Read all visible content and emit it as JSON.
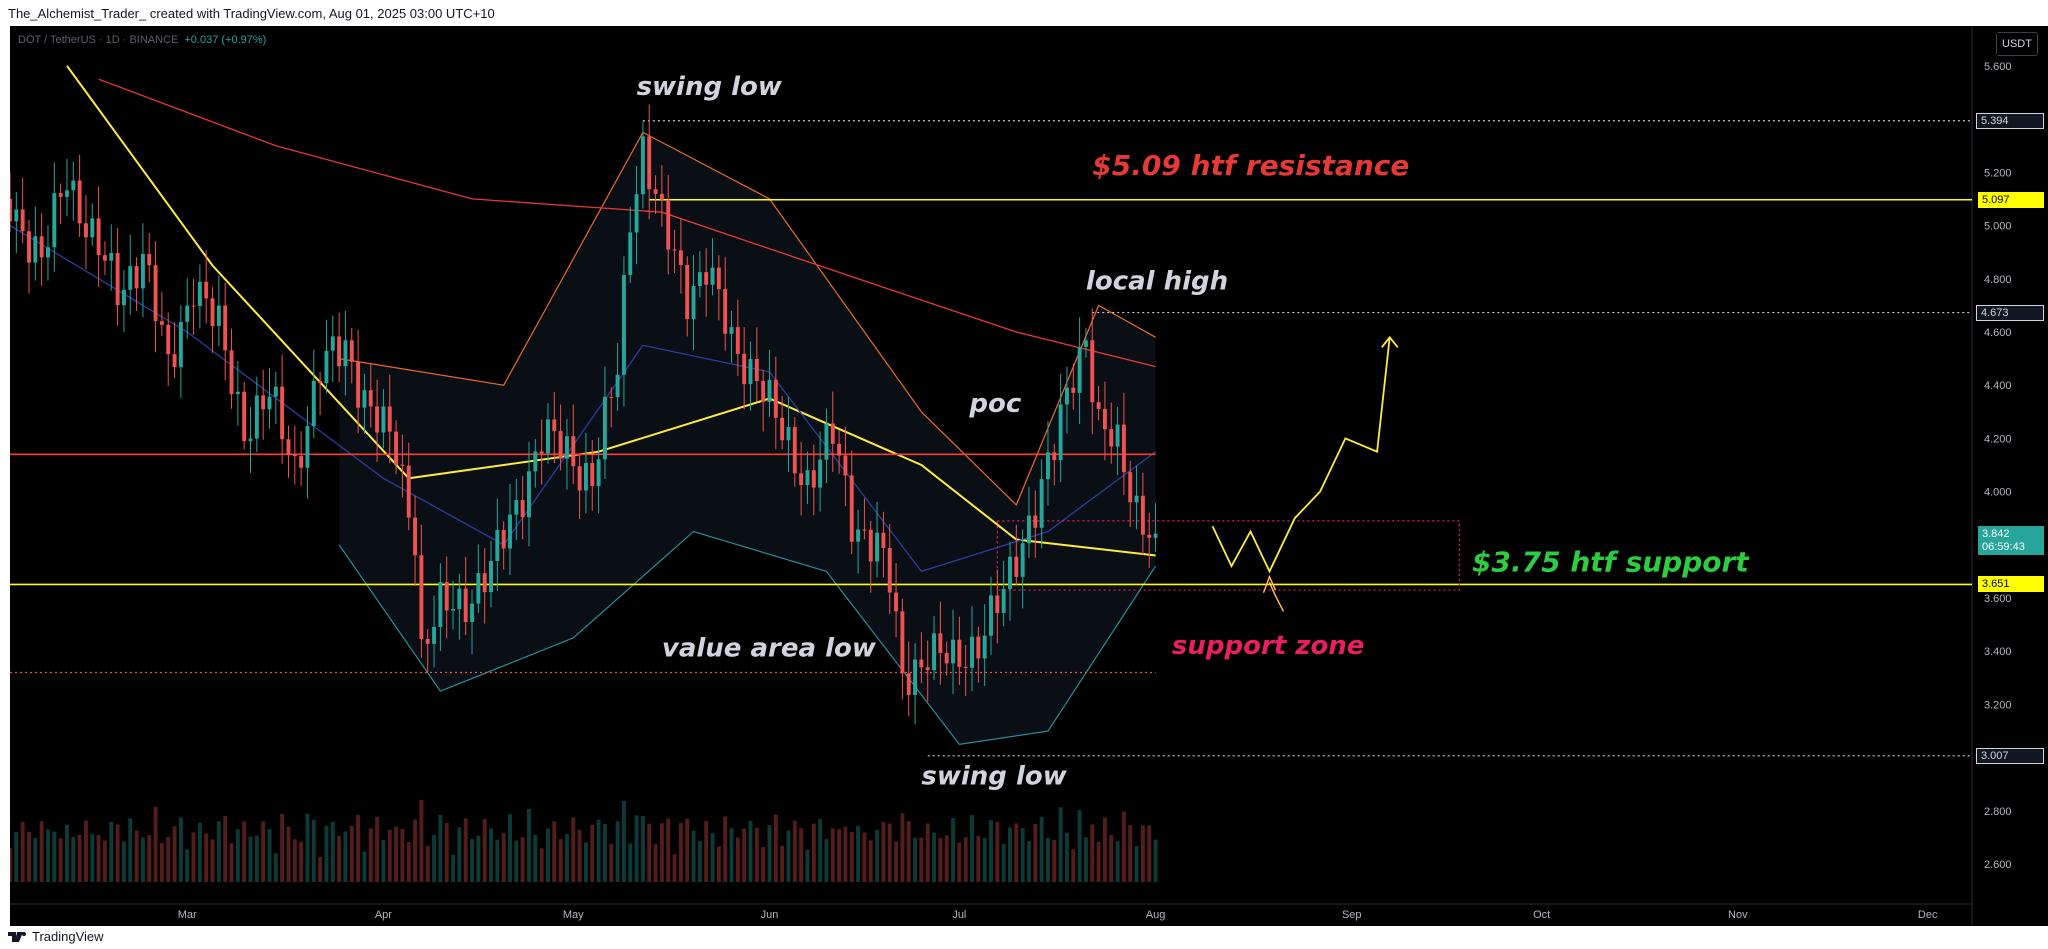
{
  "header": {
    "title": "The_Alchemist_Trader_ created with TradingView.com, Aug 01, 2025 03:00 UTC+10"
  },
  "legend": {
    "symbol": "DOT / TetherUS · 1D · BINANCE",
    "change": "+0.037 (+0.97%)"
  },
  "currency_button": "USDT",
  "footer": {
    "brand": "TradingView"
  },
  "colors": {
    "up": "#26a69a",
    "down": "#ef5350",
    "support": "#ffff00",
    "resistance": "#ff3b30",
    "annotation_text": "#d1d4dc",
    "support_label": "#2ecc40",
    "resistance_label": "#e53935",
    "zone_label": "#e91e63"
  },
  "price_tags": [
    {
      "value": "5.394",
      "price": 5.394,
      "style": "dotted"
    },
    {
      "value": "5.097",
      "price": 5.097,
      "style": "yellow"
    },
    {
      "value": "4.673",
      "price": 4.673,
      "style": "dotted"
    },
    {
      "value": "3.842",
      "price": 3.842,
      "style": "last"
    },
    {
      "value": "06:59:43",
      "price": 3.79,
      "style": "countdown"
    },
    {
      "value": "3.651",
      "price": 3.651,
      "style": "yellow"
    },
    {
      "value": "3.007",
      "price": 3.007,
      "style": "dotted"
    }
  ],
  "annotations": {
    "swing_low_top": "swing low",
    "resistance": "$5.09 htf resistance",
    "local_high": "local high",
    "poc": "poc",
    "support": "$3.75 htf support",
    "support_zone": "support zone",
    "value_area_low": "value area low",
    "swing_low_bottom": "swing low"
  },
  "chart_data": {
    "type": "candlestick",
    "symbol": "DOT / TetherUS",
    "timeframe": "1D",
    "exchange": "BINANCE",
    "y_ticks": [
      2.6,
      2.8,
      3.0,
      3.2,
      3.4,
      3.6,
      3.8,
      4.0,
      4.2,
      4.4,
      4.6,
      4.8,
      5.0,
      5.2,
      5.4,
      5.6
    ],
    "y_tick_labels": [
      "2.600",
      "2.800",
      "3.000",
      "3.200",
      "3.400",
      "3.600",
      "3.800",
      "4.000",
      "4.200",
      "4.400",
      "4.600",
      "4.800",
      "5.000",
      "5.200",
      "5.400",
      "5.600"
    ],
    "ylim": [
      2.45,
      5.75
    ],
    "x_labels": [
      "Mar",
      "Apr",
      "May",
      "Jun",
      "Jul",
      "Aug",
      "Sep",
      "Oct",
      "Nov",
      "Dec"
    ],
    "x_label_dates": [
      "2025-03-01",
      "2025-04-01",
      "2025-05-01",
      "2025-06-01",
      "2025-07-01",
      "2025-08-01",
      "2025-09-01",
      "2025-10-01",
      "2025-11-01",
      "2025-12-01"
    ],
    "xlim": [
      "2025-02-01",
      "2025-12-08"
    ],
    "last_bar_date": "2025-08-01",
    "close_path": [
      [
        "2025-02-01",
        5.1
      ],
      [
        "2025-02-06",
        4.85
      ],
      [
        "2025-02-10",
        5.2
      ],
      [
        "2025-02-14",
        4.95
      ],
      [
        "2025-02-18",
        4.75
      ],
      [
        "2025-02-22",
        4.9
      ],
      [
        "2025-02-26",
        4.45
      ],
      [
        "2025-03-02",
        4.8
      ],
      [
        "2025-03-06",
        4.6
      ],
      [
        "2025-03-10",
        4.25
      ],
      [
        "2025-03-14",
        4.35
      ],
      [
        "2025-03-18",
        4.1
      ],
      [
        "2025-03-22",
        4.45
      ],
      [
        "2025-03-26",
        4.55
      ],
      [
        "2025-03-30",
        4.3
      ],
      [
        "2025-04-03",
        4.15
      ],
      [
        "2025-04-06",
        3.85
      ],
      [
        "2025-04-07",
        3.4
      ],
      [
        "2025-04-10",
        3.55
      ],
      [
        "2025-04-14",
        3.6
      ],
      [
        "2025-04-18",
        3.7
      ],
      [
        "2025-04-22",
        3.95
      ],
      [
        "2025-04-26",
        4.2
      ],
      [
        "2025-04-30",
        4.15
      ],
      [
        "2025-05-04",
        4.05
      ],
      [
        "2025-05-08",
        4.45
      ],
      [
        "2025-05-10",
        5.05
      ],
      [
        "2025-05-12",
        5.3
      ],
      [
        "2025-05-15",
        5.0
      ],
      [
        "2025-05-19",
        4.75
      ],
      [
        "2025-05-22",
        4.85
      ],
      [
        "2025-05-26",
        4.55
      ],
      [
        "2025-05-30",
        4.45
      ],
      [
        "2025-06-03",
        4.2
      ],
      [
        "2025-06-07",
        4.05
      ],
      [
        "2025-06-11",
        4.2
      ],
      [
        "2025-06-14",
        3.9
      ],
      [
        "2025-06-18",
        3.8
      ],
      [
        "2025-06-20",
        3.65
      ],
      [
        "2025-06-22",
        3.3
      ],
      [
        "2025-06-26",
        3.4
      ],
      [
        "2025-06-30",
        3.35
      ],
      [
        "2025-07-04",
        3.45
      ],
      [
        "2025-07-08",
        3.6
      ],
      [
        "2025-07-12",
        3.9
      ],
      [
        "2025-07-16",
        4.15
      ],
      [
        "2025-07-19",
        4.45
      ],
      [
        "2025-07-21",
        4.6
      ],
      [
        "2025-07-23",
        4.25
      ],
      [
        "2025-07-26",
        4.15
      ],
      [
        "2025-07-29",
        3.95
      ],
      [
        "2025-08-01",
        3.842
      ]
    ],
    "moving_averages": [
      {
        "color": "#ffeb3b",
        "points": [
          [
            "2025-02-10",
            5.6
          ],
          [
            "2025-03-05",
            4.85
          ],
          [
            "2025-04-05",
            4.05
          ],
          [
            "2025-05-05",
            4.15
          ],
          [
            "2025-06-01",
            4.35
          ],
          [
            "2025-06-25",
            4.1
          ],
          [
            "2025-07-10",
            3.82
          ],
          [
            "2025-08-01",
            3.76
          ]
        ]
      },
      {
        "color": "#e53935",
        "points": [
          [
            "2025-02-15",
            5.55
          ],
          [
            "2025-03-15",
            5.3
          ],
          [
            "2025-04-15",
            5.1
          ],
          [
            "2025-05-15",
            5.05
          ],
          [
            "2025-06-15",
            4.8
          ],
          [
            "2025-07-10",
            4.6
          ],
          [
            "2025-08-01",
            4.47
          ]
        ]
      },
      {
        "color": "#2c3e9e",
        "points": [
          [
            "2025-02-01",
            5.0
          ],
          [
            "2025-03-01",
            4.6
          ],
          [
            "2025-04-01",
            4.05
          ],
          [
            "2025-04-20",
            3.8
          ],
          [
            "2025-05-12",
            4.55
          ],
          [
            "2025-06-01",
            4.45
          ],
          [
            "2025-06-25",
            3.7
          ],
          [
            "2025-07-15",
            3.85
          ],
          [
            "2025-08-01",
            4.15
          ]
        ]
      }
    ],
    "bollinger": {
      "upper": [
        [
          "2025-03-25",
          4.5
        ],
        [
          "2025-04-20",
          4.4
        ],
        [
          "2025-05-12",
          5.35
        ],
        [
          "2025-06-01",
          5.1
        ],
        [
          "2025-06-25",
          4.3
        ],
        [
          "2025-07-10",
          3.95
        ],
        [
          "2025-07-23",
          4.7
        ],
        [
          "2025-08-01",
          4.58
        ]
      ],
      "lower": [
        [
          "2025-03-25",
          3.8
        ],
        [
          "2025-04-10",
          3.25
        ],
        [
          "2025-05-01",
          3.45
        ],
        [
          "2025-05-20",
          3.85
        ],
        [
          "2025-06-10",
          3.7
        ],
        [
          "2025-07-01",
          3.05
        ],
        [
          "2025-07-15",
          3.1
        ],
        [
          "2025-08-01",
          3.72
        ]
      ]
    },
    "horizontal_lines": [
      {
        "price": 5.097,
        "color": "#ffff00",
        "style": "solid",
        "from": "2025-05-13"
      },
      {
        "price": 4.14,
        "color": "#ff3b30",
        "style": "solid",
        "from": "2025-02-01",
        "to": "2025-08-01"
      },
      {
        "price": 3.651,
        "color": "#ffff00",
        "style": "solid",
        "from": "2025-02-01"
      },
      {
        "price": 3.32,
        "color": "#ef5350",
        "style": "dotted",
        "from": "2025-02-01",
        "to": "2025-08-01"
      },
      {
        "price": 5.394,
        "color": "#cccccc",
        "style": "dotted",
        "from": "2025-05-12"
      },
      {
        "price": 4.673,
        "color": "#cccccc",
        "style": "dotted",
        "from": "2025-07-22"
      },
      {
        "price": 3.007,
        "color": "#cccccc",
        "style": "dotted",
        "from": "2025-06-26"
      }
    ],
    "support_zone": {
      "price_low": 3.63,
      "price_high": 3.89,
      "from": "2025-07-07",
      "to": "2025-09-18"
    },
    "projection": [
      [
        "2025-08-10",
        3.87
      ],
      [
        "2025-08-13",
        3.72
      ],
      [
        "2025-08-16",
        3.85
      ],
      [
        "2025-08-19",
        3.7
      ],
      [
        "2025-08-23",
        3.9
      ],
      [
        "2025-08-27",
        4.0
      ],
      [
        "2025-08-31",
        4.2
      ],
      [
        "2025-09-05",
        4.15
      ],
      [
        "2025-09-07",
        4.58
      ]
    ]
  }
}
